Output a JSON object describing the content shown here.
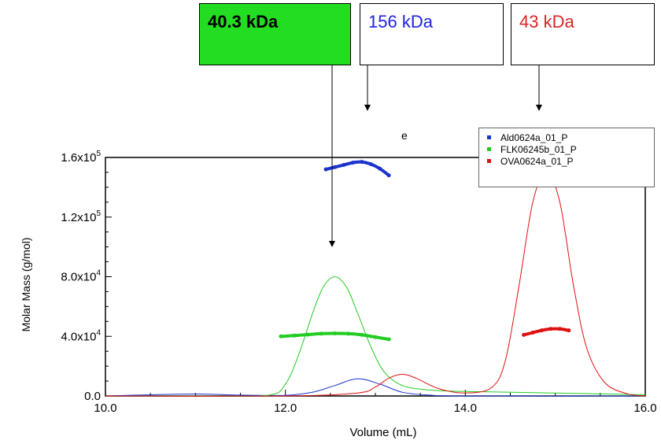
{
  "callouts": [
    {
      "label": "40.3 kDa",
      "color": "#000000",
      "bg": "#22dd22"
    },
    {
      "label": "156 kDa",
      "color": "#2222dd",
      "bg": "#ffffff"
    },
    {
      "label": "43 kDa",
      "color": "#dd2222",
      "bg": "#ffffff"
    }
  ],
  "stray_text": "e",
  "legend": [
    {
      "label": "Ald0624a_01_P",
      "color": "#1a33cc"
    },
    {
      "label": "FLK06245b_01_P",
      "color": "#22cc22"
    },
    {
      "label": "OVA0624a_01_P",
      "color": "#dd1111"
    }
  ],
  "chart_data": {
    "type": "line",
    "xlabel": "Volume (mL)",
    "ylabel": "Molar Mass (g/mol)",
    "xlim": [
      10.0,
      16.0
    ],
    "ylim": [
      0,
      160000
    ],
    "x_ticks": [
      10.0,
      12.0,
      14.0,
      16.0
    ],
    "x_tick_labels": [
      "10.0",
      "12.0",
      "14.0",
      "16.0"
    ],
    "y_ticks": [
      0,
      40000,
      80000,
      120000,
      160000
    ],
    "y_tick_labels": [
      {
        "base": "0.0",
        "exp": ""
      },
      {
        "base": "4.0x10",
        "exp": "4"
      },
      {
        "base": "8.0x10",
        "exp": "4"
      },
      {
        "base": "1.2x10",
        "exp": "5"
      },
      {
        "base": "1.6x10",
        "exp": "5"
      }
    ],
    "series": [
      {
        "name": "Ald0624a_01_P",
        "color": "#1a33cc",
        "trace": {
          "x": [
            10.0,
            10.5,
            11.0,
            11.5,
            12.0,
            12.3,
            12.55,
            12.8,
            13.05,
            13.3,
            13.6,
            14.0,
            16.0
          ],
          "y": [
            0,
            800,
            1300,
            600,
            400,
            2500,
            7000,
            11500,
            8000,
            2500,
            600,
            0,
            0
          ]
        },
        "molar_mass": {
          "x": [
            12.45,
            12.55,
            12.65,
            12.75,
            12.85,
            12.95,
            13.05,
            13.15
          ],
          "y": [
            152000,
            153500,
            155000,
            156500,
            157000,
            155500,
            152500,
            148000
          ]
        }
      },
      {
        "name": "FLK06245b_01_P",
        "color": "#22cc22",
        "trace": {
          "x": [
            10.0,
            11.0,
            11.8,
            12.0,
            12.15,
            12.3,
            12.42,
            12.55,
            12.68,
            12.8,
            12.95,
            13.1,
            13.3,
            13.6,
            14.0,
            15.0,
            16.0
          ],
          "y": [
            0,
            0,
            500,
            8000,
            28000,
            55000,
            73000,
            80000,
            73000,
            56000,
            33000,
            16000,
            7000,
            4000,
            3000,
            2000,
            800
          ]
        },
        "molar_mass": {
          "x": [
            11.95,
            12.1,
            12.25,
            12.4,
            12.55,
            12.7,
            12.85,
            13.0,
            13.15
          ],
          "y": [
            40000,
            40500,
            41200,
            41800,
            42000,
            41800,
            41000,
            39500,
            38000
          ]
        }
      },
      {
        "name": "OVA0624a_01_P",
        "color": "#dd1111",
        "trace": {
          "x": [
            10.0,
            12.0,
            12.8,
            13.0,
            13.15,
            13.3,
            13.45,
            13.7,
            14.0,
            14.3,
            14.45,
            14.6,
            14.75,
            14.9,
            15.05,
            15.2,
            15.35,
            15.55,
            15.8,
            16.0
          ],
          "y": [
            0,
            0,
            2000,
            6000,
            12000,
            14500,
            12000,
            5000,
            2000,
            6000,
            25000,
            75000,
            130000,
            150000,
            130000,
            75000,
            32000,
            9000,
            1500,
            0
          ]
        },
        "molar_mass": {
          "x": [
            14.65,
            14.75,
            14.85,
            14.95,
            15.05,
            15.15
          ],
          "y": [
            41000,
            42500,
            44000,
            45000,
            45000,
            44000
          ]
        }
      }
    ],
    "legend_position": "top-right",
    "grid": false
  }
}
